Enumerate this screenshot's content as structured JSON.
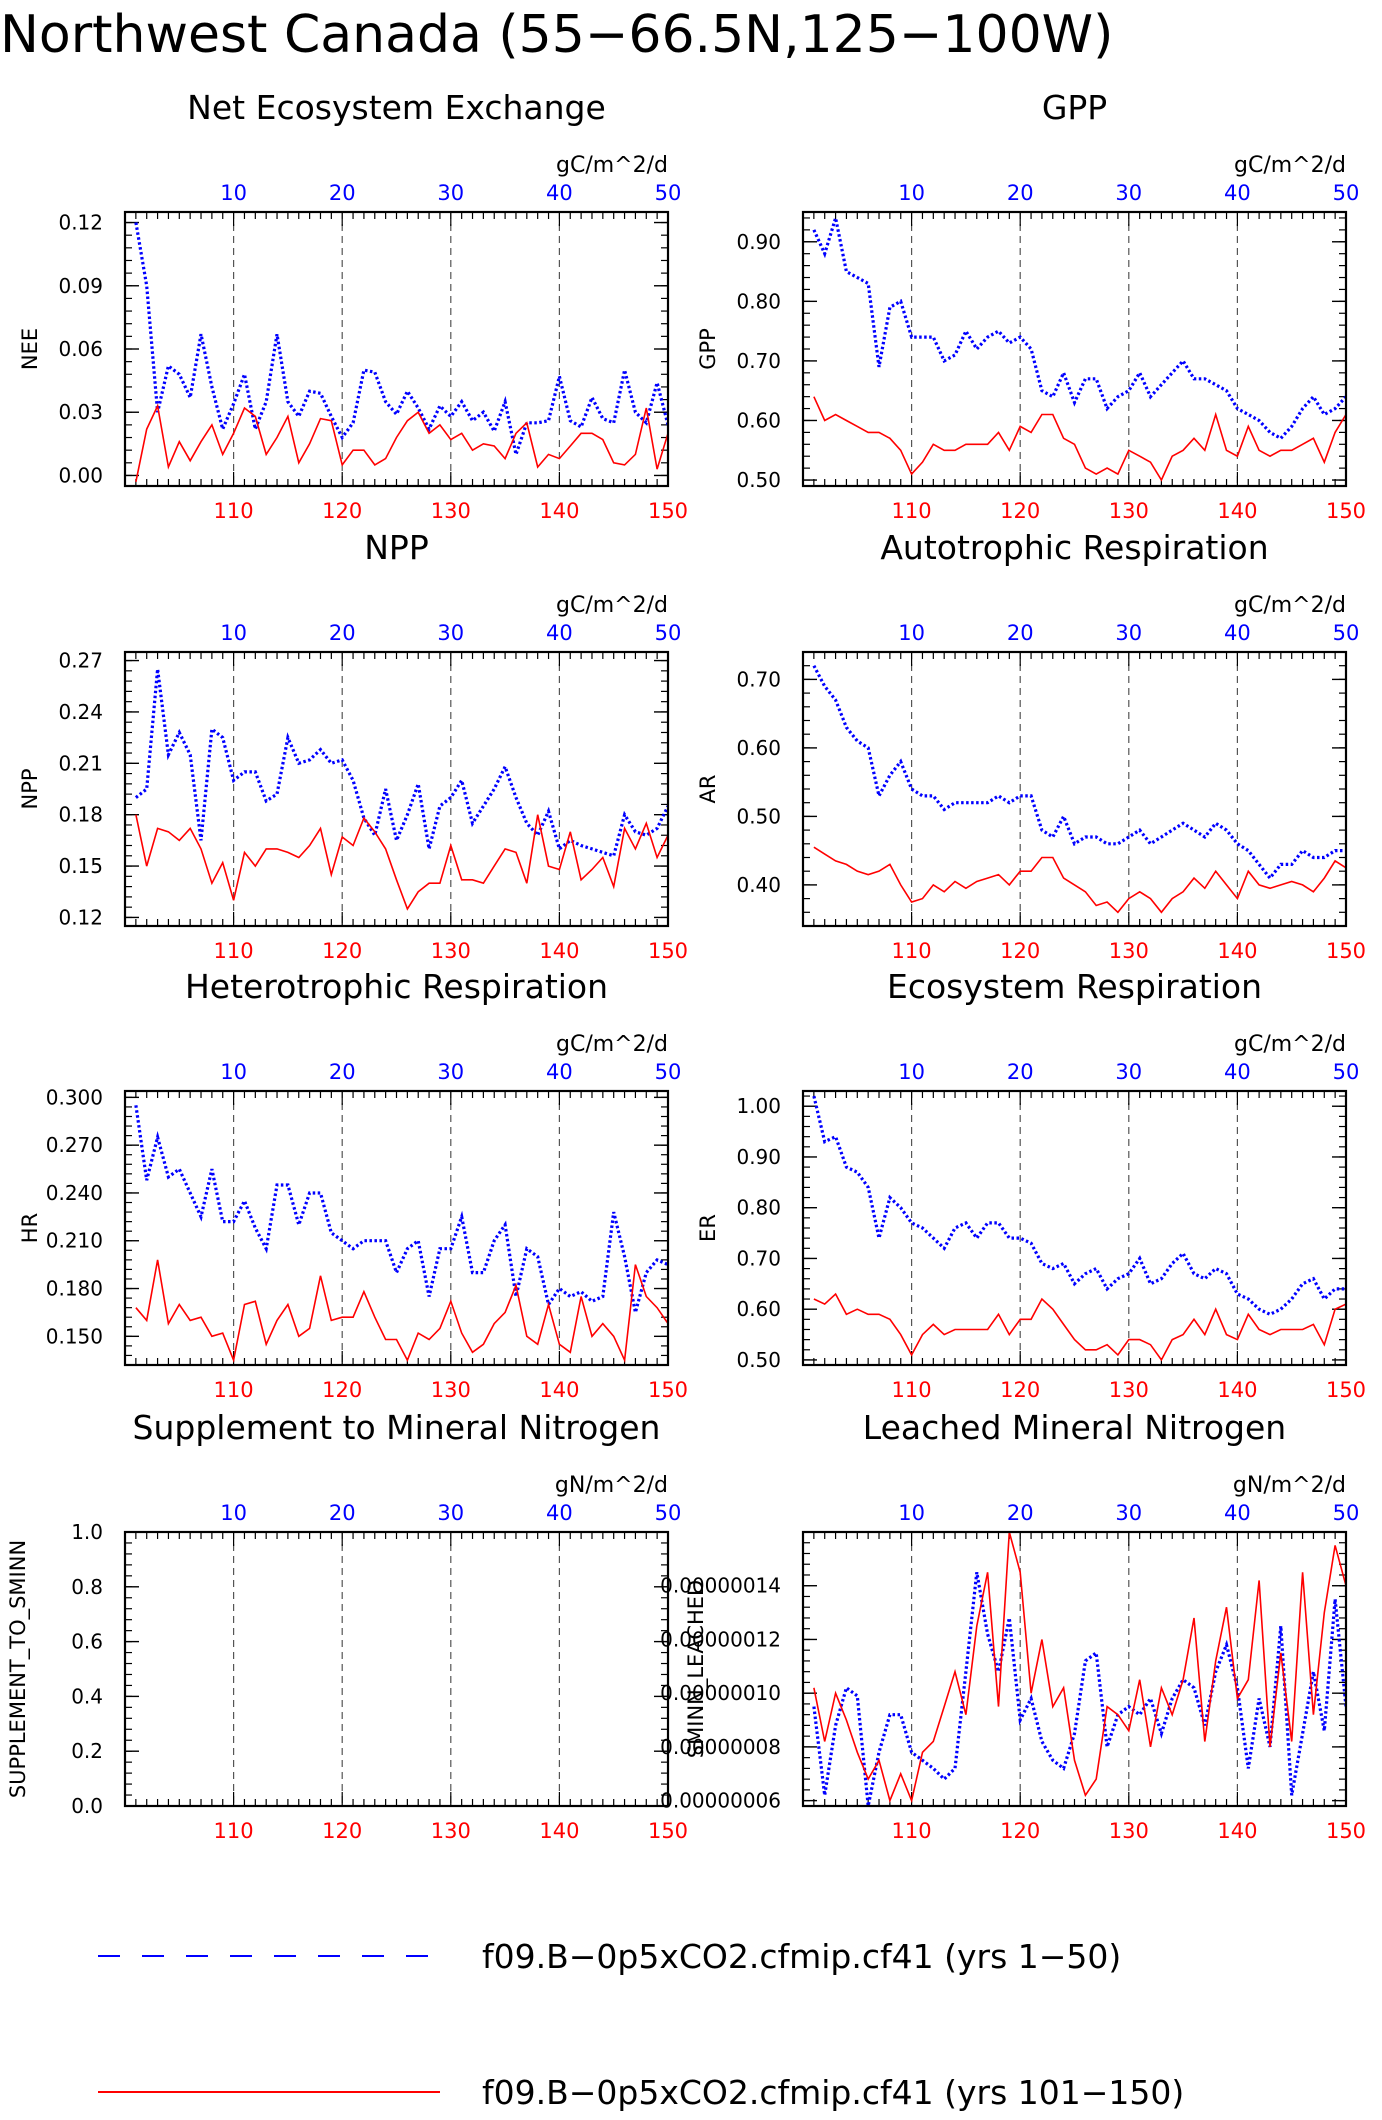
{
  "title": "Northwest Canada (55−66.5N,125−100W)",
  "colors": {
    "blue": "#0000ff",
    "red": "#ff0000",
    "axis": "#000000",
    "grid": "#555555"
  },
  "top_axis_ticks": [
    "10",
    "20",
    "30",
    "40",
    "50"
  ],
  "bottom_axis_ticks": [
    "110",
    "120",
    "130",
    "140",
    "150"
  ],
  "legend": [
    {
      "label": "f09.B−0p5xCO2.cfmip.cf41 (yrs 1−50)",
      "color": "#0000ff",
      "style": "dashed"
    },
    {
      "label": "f09.B−0p5xCO2.cfmip.cf41 (yrs 101−150)",
      "color": "#ff0000",
      "style": "solid"
    }
  ],
  "chart_data": [
    {
      "type": "line",
      "title": "Net Ecosystem Exchange",
      "units": "gC/m^2/d",
      "ylabel": "NEE",
      "ylim": [
        -0.005,
        0.125
      ],
      "yticks": [
        "0.00",
        "0.03",
        "0.06",
        "0.09",
        "0.12"
      ],
      "xlim_top": [
        0,
        50
      ],
      "xlim_bottom": [
        100,
        150
      ],
      "series": [
        {
          "name": "f09.B−0p5xCO2.cfmip.cf41 (yrs 1−50)",
          "color": "#0000ff",
          "style": "dotted",
          "values": [
            0.12,
            0.09,
            0.03,
            0.052,
            0.048,
            0.037,
            0.067,
            0.042,
            0.022,
            0.034,
            0.048,
            0.022,
            0.035,
            0.067,
            0.035,
            0.028,
            0.04,
            0.039,
            0.028,
            0.018,
            0.025,
            0.05,
            0.049,
            0.035,
            0.029,
            0.04,
            0.032,
            0.022,
            0.033,
            0.028,
            0.035,
            0.026,
            0.03,
            0.021,
            0.035,
            0.01,
            0.025,
            0.025,
            0.026,
            0.047,
            0.026,
            0.023,
            0.037,
            0.027,
            0.025,
            0.05,
            0.03,
            0.025,
            0.044,
            0.024
          ]
        },
        {
          "name": "f09.B−0p5xCO2.cfmip.cf41 (yrs 101−150)",
          "color": "#ff0000",
          "style": "solid",
          "values": [
            -0.003,
            0.022,
            0.033,
            0.004,
            0.016,
            0.007,
            0.016,
            0.024,
            0.01,
            0.02,
            0.032,
            0.028,
            0.01,
            0.018,
            0.028,
            0.006,
            0.015,
            0.027,
            0.026,
            0.005,
            0.012,
            0.012,
            0.005,
            0.008,
            0.018,
            0.026,
            0.03,
            0.02,
            0.024,
            0.017,
            0.02,
            0.012,
            0.015,
            0.014,
            0.008,
            0.02,
            0.025,
            0.004,
            0.01,
            0.008,
            0.014,
            0.02,
            0.02,
            0.017,
            0.006,
            0.005,
            0.01,
            0.032,
            0.003,
            0.02
          ]
        }
      ]
    },
    {
      "type": "line",
      "title": "GPP",
      "units": "gC/m^2/d",
      "ylabel": "GPP",
      "ylim": [
        0.49,
        0.95
      ],
      "yticks": [
        "0.50",
        "0.60",
        "0.70",
        "0.80",
        "0.90"
      ],
      "xlim_top": [
        0,
        50
      ],
      "xlim_bottom": [
        100,
        150
      ],
      "series": [
        {
          "name": "f09.B−0p5xCO2.cfmip.cf41 (yrs 1−50)",
          "color": "#0000ff",
          "style": "dotted",
          "values": [
            0.92,
            0.88,
            0.94,
            0.85,
            0.84,
            0.83,
            0.69,
            0.79,
            0.8,
            0.74,
            0.74,
            0.74,
            0.7,
            0.71,
            0.75,
            0.72,
            0.74,
            0.75,
            0.73,
            0.74,
            0.72,
            0.65,
            0.64,
            0.68,
            0.63,
            0.67,
            0.67,
            0.62,
            0.64,
            0.65,
            0.68,
            0.64,
            0.66,
            0.68,
            0.7,
            0.67,
            0.67,
            0.66,
            0.65,
            0.62,
            0.61,
            0.6,
            0.58,
            0.57,
            0.59,
            0.62,
            0.64,
            0.61,
            0.62,
            0.64
          ]
        },
        {
          "name": "f09.B−0p5xCO2.cfmip.cf41 (yrs 101−150)",
          "color": "#ff0000",
          "style": "solid",
          "values": [
            0.64,
            0.6,
            0.61,
            0.6,
            0.59,
            0.58,
            0.58,
            0.57,
            0.55,
            0.51,
            0.53,
            0.56,
            0.55,
            0.55,
            0.56,
            0.56,
            0.56,
            0.58,
            0.55,
            0.59,
            0.58,
            0.61,
            0.61,
            0.57,
            0.56,
            0.52,
            0.51,
            0.52,
            0.51,
            0.55,
            0.54,
            0.53,
            0.5,
            0.54,
            0.55,
            0.57,
            0.55,
            0.61,
            0.55,
            0.54,
            0.59,
            0.55,
            0.54,
            0.55,
            0.55,
            0.56,
            0.57,
            0.53,
            0.58,
            0.61
          ]
        }
      ]
    },
    {
      "type": "line",
      "title": "NPP",
      "units": "gC/m^2/d",
      "ylabel": "NPP",
      "ylim": [
        0.115,
        0.275
      ],
      "yticks": [
        "0.12",
        "0.15",
        "0.18",
        "0.21",
        "0.24",
        "0.27"
      ],
      "xlim_top": [
        0,
        50
      ],
      "xlim_bottom": [
        100,
        150
      ],
      "series": [
        {
          "name": "f09.B−0p5xCO2.cfmip.cf41 (yrs 1−50)",
          "color": "#0000ff",
          "style": "dotted",
          "values": [
            0.19,
            0.195,
            0.265,
            0.215,
            0.228,
            0.215,
            0.165,
            0.23,
            0.225,
            0.2,
            0.205,
            0.205,
            0.188,
            0.192,
            0.225,
            0.21,
            0.212,
            0.218,
            0.21,
            0.212,
            0.2,
            0.178,
            0.168,
            0.195,
            0.165,
            0.18,
            0.198,
            0.16,
            0.185,
            0.19,
            0.2,
            0.175,
            0.185,
            0.195,
            0.208,
            0.19,
            0.175,
            0.168,
            0.182,
            0.16,
            0.165,
            0.162,
            0.16,
            0.158,
            0.156,
            0.18,
            0.17,
            0.168,
            0.172,
            0.185
          ]
        },
        {
          "name": "f09.B−0p5xCO2.cfmip.cf41 (yrs 101−150)",
          "color": "#ff0000",
          "style": "solid",
          "values": [
            0.18,
            0.15,
            0.172,
            0.17,
            0.165,
            0.172,
            0.16,
            0.14,
            0.152,
            0.13,
            0.158,
            0.15,
            0.16,
            0.16,
            0.158,
            0.155,
            0.162,
            0.172,
            0.145,
            0.167,
            0.162,
            0.178,
            0.17,
            0.16,
            0.142,
            0.125,
            0.135,
            0.14,
            0.14,
            0.162,
            0.142,
            0.142,
            0.14,
            0.15,
            0.16,
            0.158,
            0.14,
            0.18,
            0.15,
            0.148,
            0.17,
            0.142,
            0.148,
            0.155,
            0.138,
            0.172,
            0.16,
            0.175,
            0.155,
            0.168
          ]
        }
      ]
    },
    {
      "type": "line",
      "title": "Autotrophic Respiration",
      "units": "gC/m^2/d",
      "ylabel": "AR",
      "ylim": [
        0.34,
        0.74
      ],
      "yticks": [
        "0.40",
        "0.50",
        "0.60",
        "0.70"
      ],
      "xlim_top": [
        0,
        50
      ],
      "xlim_bottom": [
        100,
        150
      ],
      "series": [
        {
          "name": "f09.B−0p5xCO2.cfmip.cf41 (yrs 1−50)",
          "color": "#0000ff",
          "style": "dotted",
          "values": [
            0.72,
            0.69,
            0.67,
            0.63,
            0.61,
            0.6,
            0.53,
            0.56,
            0.58,
            0.54,
            0.53,
            0.53,
            0.51,
            0.52,
            0.52,
            0.52,
            0.52,
            0.53,
            0.52,
            0.53,
            0.53,
            0.48,
            0.47,
            0.5,
            0.46,
            0.47,
            0.47,
            0.46,
            0.46,
            0.47,
            0.48,
            0.46,
            0.47,
            0.48,
            0.49,
            0.48,
            0.47,
            0.49,
            0.48,
            0.46,
            0.45,
            0.43,
            0.41,
            0.43,
            0.43,
            0.45,
            0.44,
            0.44,
            0.45,
            0.45
          ]
        },
        {
          "name": "f09.B−0p5xCO2.cfmip.cf41 (yrs 101−150)",
          "color": "#ff0000",
          "style": "solid",
          "values": [
            0.455,
            0.445,
            0.435,
            0.43,
            0.42,
            0.415,
            0.42,
            0.43,
            0.4,
            0.375,
            0.38,
            0.4,
            0.39,
            0.405,
            0.395,
            0.405,
            0.41,
            0.415,
            0.4,
            0.42,
            0.42,
            0.44,
            0.44,
            0.41,
            0.4,
            0.39,
            0.37,
            0.375,
            0.36,
            0.38,
            0.39,
            0.38,
            0.36,
            0.38,
            0.39,
            0.41,
            0.395,
            0.42,
            0.4,
            0.38,
            0.42,
            0.4,
            0.395,
            0.4,
            0.405,
            0.4,
            0.39,
            0.41,
            0.435,
            0.425
          ]
        }
      ]
    },
    {
      "type": "line",
      "title": "Heterotrophic Respiration",
      "units": "gC/m^2/d",
      "ylabel": "HR",
      "ylim": [
        0.132,
        0.304
      ],
      "yticks": [
        "0.150",
        "0.180",
        "0.210",
        "0.240",
        "0.270",
        "0.300"
      ],
      "xlim_top": [
        0,
        50
      ],
      "xlim_bottom": [
        100,
        150
      ],
      "series": [
        {
          "name": "f09.B−0p5xCO2.cfmip.cf41 (yrs 1−50)",
          "color": "#0000ff",
          "style": "dotted",
          "values": [
            0.295,
            0.248,
            0.275,
            0.25,
            0.255,
            0.24,
            0.225,
            0.255,
            0.222,
            0.222,
            0.235,
            0.218,
            0.205,
            0.245,
            0.245,
            0.22,
            0.24,
            0.24,
            0.215,
            0.21,
            0.205,
            0.21,
            0.21,
            0.21,
            0.19,
            0.205,
            0.21,
            0.175,
            0.205,
            0.205,
            0.225,
            0.19,
            0.19,
            0.21,
            0.22,
            0.175,
            0.205,
            0.2,
            0.17,
            0.18,
            0.175,
            0.178,
            0.172,
            0.175,
            0.228,
            0.2,
            0.165,
            0.19,
            0.198,
            0.195
          ]
        },
        {
          "name": "f09.B−0p5xCO2.cfmip.cf41 (yrs 101−150)",
          "color": "#ff0000",
          "style": "solid",
          "values": [
            0.168,
            0.16,
            0.198,
            0.158,
            0.17,
            0.16,
            0.162,
            0.15,
            0.152,
            0.135,
            0.17,
            0.172,
            0.145,
            0.16,
            0.17,
            0.15,
            0.155,
            0.188,
            0.16,
            0.162,
            0.162,
            0.178,
            0.162,
            0.148,
            0.148,
            0.135,
            0.152,
            0.148,
            0.155,
            0.172,
            0.152,
            0.14,
            0.145,
            0.158,
            0.165,
            0.182,
            0.15,
            0.145,
            0.17,
            0.145,
            0.14,
            0.175,
            0.15,
            0.158,
            0.15,
            0.135,
            0.195,
            0.175,
            0.168,
            0.158
          ]
        }
      ]
    },
    {
      "type": "line",
      "title": "Ecosystem Respiration",
      "units": "gC/m^2/d",
      "ylabel": "ER",
      "ylim": [
        0.49,
        1.03
      ],
      "yticks": [
        "0.50",
        "0.60",
        "0.70",
        "0.80",
        "0.90",
        "1.00"
      ],
      "xlim_top": [
        0,
        50
      ],
      "xlim_bottom": [
        100,
        150
      ],
      "series": [
        {
          "name": "f09.B−0p5xCO2.cfmip.cf41 (yrs 1−50)",
          "color": "#0000ff",
          "style": "dotted",
          "values": [
            1.02,
            0.93,
            0.94,
            0.88,
            0.87,
            0.84,
            0.74,
            0.82,
            0.8,
            0.77,
            0.76,
            0.74,
            0.72,
            0.76,
            0.77,
            0.74,
            0.77,
            0.77,
            0.74,
            0.74,
            0.73,
            0.69,
            0.68,
            0.69,
            0.65,
            0.67,
            0.68,
            0.64,
            0.66,
            0.67,
            0.7,
            0.65,
            0.66,
            0.69,
            0.71,
            0.67,
            0.66,
            0.68,
            0.67,
            0.63,
            0.62,
            0.6,
            0.59,
            0.6,
            0.62,
            0.65,
            0.66,
            0.62,
            0.64,
            0.64
          ]
        },
        {
          "name": "f09.B−0p5xCO2.cfmip.cf41 (yrs 101−150)",
          "color": "#ff0000",
          "style": "solid",
          "values": [
            0.62,
            0.61,
            0.63,
            0.59,
            0.6,
            0.59,
            0.59,
            0.58,
            0.55,
            0.51,
            0.55,
            0.57,
            0.55,
            0.56,
            0.56,
            0.56,
            0.56,
            0.59,
            0.55,
            0.58,
            0.58,
            0.62,
            0.6,
            0.57,
            0.54,
            0.52,
            0.52,
            0.53,
            0.51,
            0.54,
            0.54,
            0.53,
            0.5,
            0.54,
            0.55,
            0.58,
            0.55,
            0.6,
            0.55,
            0.54,
            0.59,
            0.56,
            0.55,
            0.56,
            0.56,
            0.56,
            0.57,
            0.53,
            0.6,
            0.61
          ]
        }
      ]
    },
    {
      "type": "line",
      "title": "Supplement to Mineral Nitrogen",
      "units": "gN/m^2/d",
      "ylabel": "SUPPLEMENT_TO_SMINN",
      "ylim": [
        0.0,
        1.0
      ],
      "yticks": [
        "0.0",
        "0.2",
        "0.4",
        "0.6",
        "0.8",
        "1.0"
      ],
      "xlim_top": [
        0,
        50
      ],
      "xlim_bottom": [
        100,
        150
      ],
      "series": []
    },
    {
      "type": "line",
      "title": "Leached Mineral Nitrogen",
      "units": "gN/m^2/d",
      "ylabel": "SMINN_LEACHED",
      "ylim": [
        5.8e-08,
        1.6e-07
      ],
      "yticks": [
        "0.00000006",
        "0.00000008",
        "0.00000010",
        "0.00000012",
        "0.00000014"
      ],
      "xlim_top": [
        0,
        50
      ],
      "xlim_bottom": [
        100,
        150
      ],
      "series": [
        {
          "name": "f09.B−0p5xCO2.cfmip.cf41 (yrs 1−50)",
          "color": "#0000ff",
          "style": "dotted",
          "values": [
            9.5e-08,
            6.2e-08,
            8.8e-08,
            1.02e-07,
            9.9e-08,
            5.8e-08,
            7.8e-08,
            9.2e-08,
            9.2e-08,
            7.8e-08,
            7.5e-08,
            7.2e-08,
            6.8e-08,
            7.2e-08,
            1.08e-07,
            1.45e-07,
            1.22e-07,
            1.08e-07,
            1.28e-07,
            9e-08,
            9.8e-08,
            8.2e-08,
            7.5e-08,
            7.2e-08,
            8.5e-08,
            1.12e-07,
            1.15e-07,
            8e-08,
            9.2e-08,
            9.5e-08,
            9.2e-08,
            9.8e-08,
            8.5e-08,
            9.8e-08,
            1.05e-07,
            1.02e-07,
            8.8e-08,
            1.08e-07,
            1.18e-07,
            1.02e-07,
            7.2e-08,
            9.8e-08,
            8e-08,
            1.25e-07,
            6.2e-08,
            8.5e-08,
            1.08e-07,
            8.6e-08,
            1.35e-07,
            9.5e-08
          ]
        },
        {
          "name": "f09.B−0p5xCO2.cfmip.cf41 (yrs 101−150)",
          "color": "#ff0000",
          "style": "solid",
          "values": [
            1.02e-07,
            8.2e-08,
            1e-07,
            9e-08,
            7.8e-08,
            6.8e-08,
            7.5e-08,
            6e-08,
            7e-08,
            6e-08,
            7.8e-08,
            8.2e-08,
            9.5e-08,
            1.08e-07,
            9.2e-08,
            1.25e-07,
            1.45e-07,
            9.5e-08,
            1.6e-07,
            1.45e-07,
            1e-07,
            1.2e-07,
            9.5e-08,
            1.02e-07,
            7.5e-08,
            6.2e-08,
            6.8e-08,
            9.5e-08,
            9.2e-08,
            8.6e-08,
            1.05e-07,
            8e-08,
            1.02e-07,
            9.2e-08,
            1.05e-07,
            1.28e-07,
            8.2e-08,
            1.12e-07,
            1.32e-07,
            9.8e-08,
            1.05e-07,
            1.42e-07,
            8e-08,
            1.15e-07,
            8.2e-08,
            1.45e-07,
            9.2e-08,
            1.3e-07,
            1.55e-07,
            1.4e-07
          ]
        }
      ]
    }
  ]
}
